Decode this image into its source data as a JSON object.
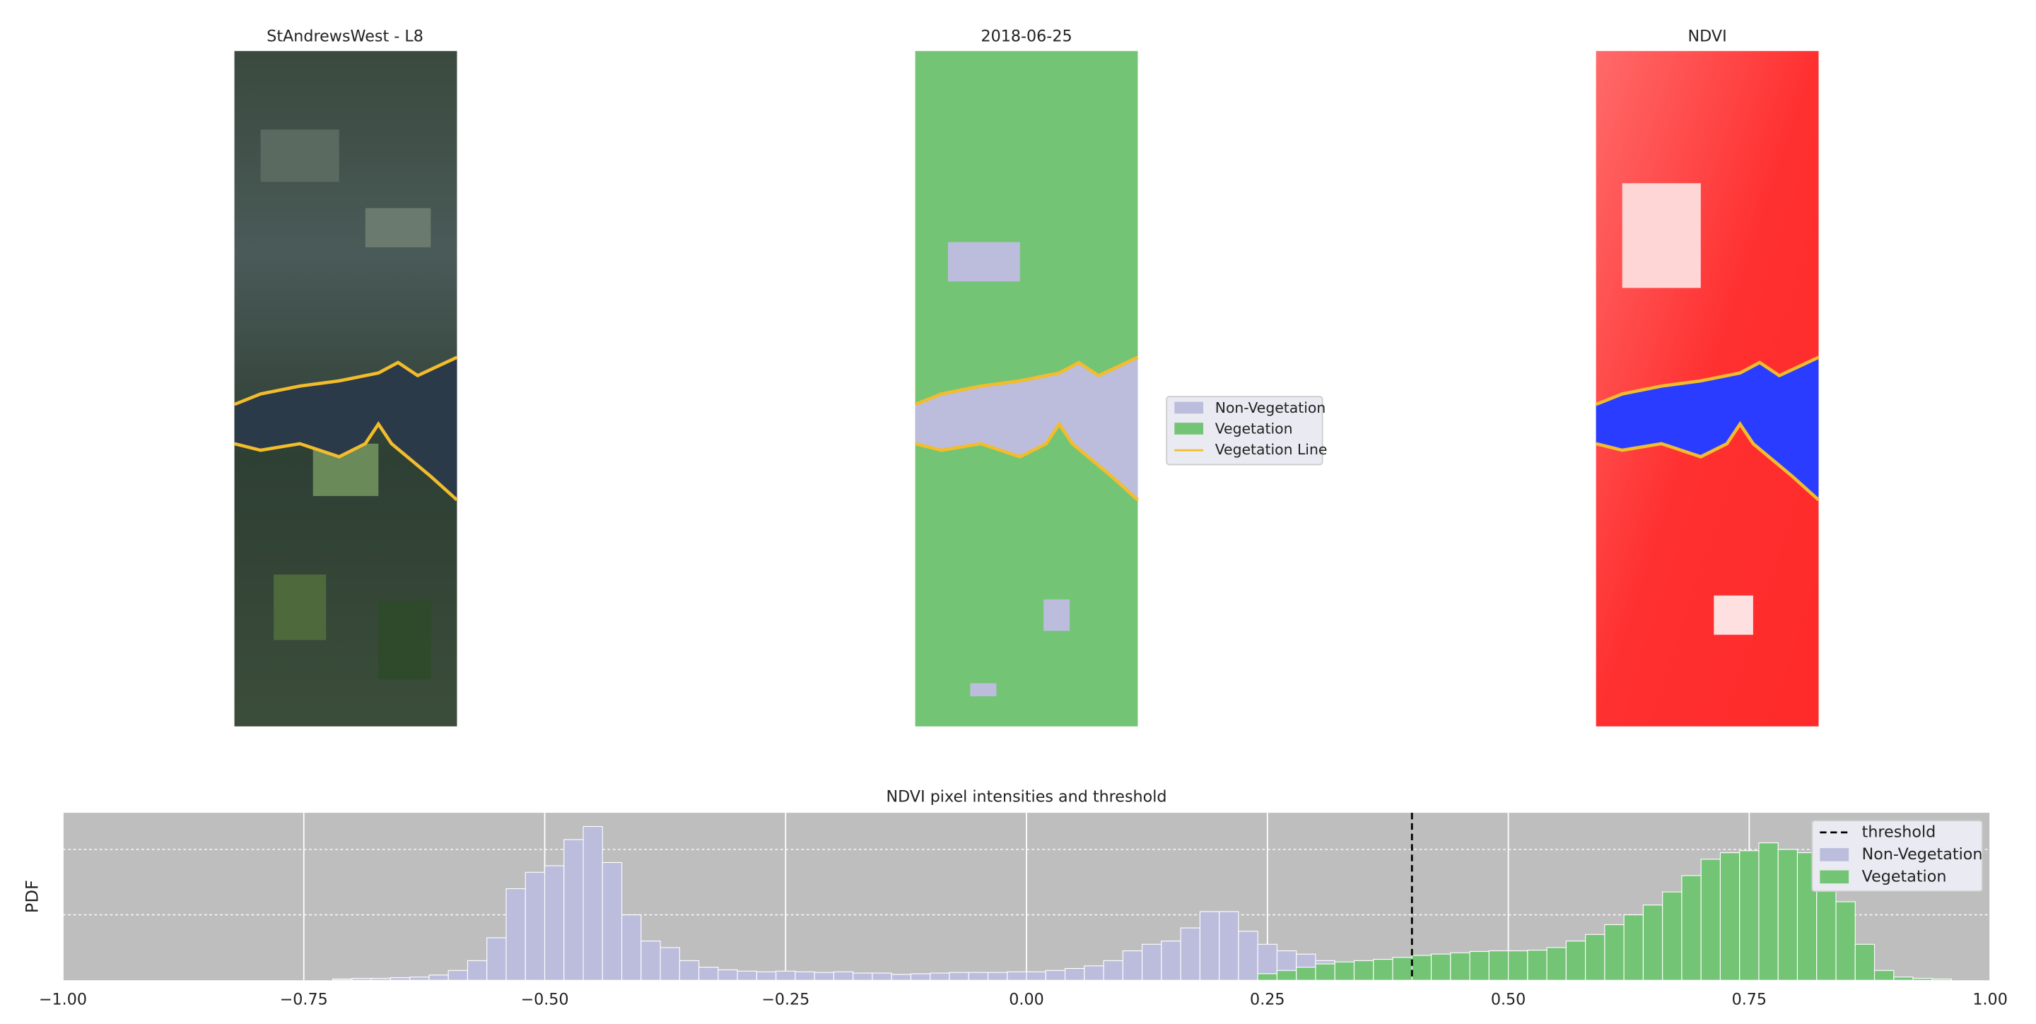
{
  "panels": [
    {
      "title": "StAndrewsWest - L8"
    },
    {
      "title": "2018-06-25"
    },
    {
      "title": "NDVI"
    }
  ],
  "map_legend": [
    "Non-Vegetation",
    "Vegetation",
    "Vegetation Line"
  ],
  "chart_data": {
    "type": "histogram",
    "title": "NDVI pixel intensities and threshold",
    "ylabel": "PDF",
    "xlim": [
      -1,
      1
    ],
    "ylim": [
      0,
      2.56
    ],
    "xticks": [
      {
        "value": -1,
        "label": "−1.00"
      },
      {
        "value": -0.75,
        "label": "−0.75"
      },
      {
        "value": -0.5,
        "label": "−0.50"
      },
      {
        "value": -0.25,
        "label": "−0.25"
      },
      {
        "value": 0,
        "label": "0.00"
      },
      {
        "value": 0.25,
        "label": "0.25"
      },
      {
        "value": 0.5,
        "label": "0.50"
      },
      {
        "value": 0.75,
        "label": "0.75"
      },
      {
        "value": 1,
        "label": "1.00"
      }
    ],
    "yticks": [
      1,
      2
    ],
    "grid": true,
    "legend": "upper right",
    "threshold": {
      "name": "threshold",
      "value": 0.4,
      "color": "#000000"
    },
    "series": [
      {
        "name": "Non-Vegetation",
        "color": "#bcbddc",
        "bins": [
          -0.72,
          -0.7,
          -0.68,
          -0.66,
          -0.64,
          -0.62,
          -0.6,
          -0.58,
          -0.56,
          -0.54,
          -0.52,
          -0.5,
          -0.48,
          -0.46,
          -0.44,
          -0.42,
          -0.4,
          -0.38,
          -0.36,
          -0.34,
          -0.32,
          -0.3,
          -0.28,
          -0.26,
          -0.24,
          -0.22,
          -0.2,
          -0.18,
          -0.16,
          -0.14,
          -0.12,
          -0.1,
          -0.08,
          -0.06,
          -0.04,
          -0.02,
          0.0,
          0.02,
          0.04,
          0.06,
          0.08,
          0.1,
          0.12,
          0.14,
          0.16,
          0.18,
          0.2,
          0.22,
          0.24,
          0.26,
          0.28,
          0.3,
          0.32,
          0.34,
          0.36,
          0.38,
          0.4,
          0.42
        ],
        "values": [
          0.02,
          0.03,
          0.03,
          0.04,
          0.05,
          0.08,
          0.15,
          0.3,
          0.65,
          1.4,
          1.65,
          1.75,
          2.15,
          2.35,
          1.8,
          1.0,
          0.6,
          0.5,
          0.3,
          0.2,
          0.16,
          0.14,
          0.13,
          0.14,
          0.13,
          0.12,
          0.13,
          0.11,
          0.11,
          0.09,
          0.1,
          0.11,
          0.12,
          0.12,
          0.12,
          0.13,
          0.13,
          0.15,
          0.18,
          0.22,
          0.3,
          0.45,
          0.55,
          0.6,
          0.8,
          1.05,
          1.05,
          0.75,
          0.55,
          0.45,
          0.4,
          0.3,
          0.2,
          0.12,
          0.08,
          0.05,
          0.03
        ]
      },
      {
        "name": "Vegetation",
        "color": "#74c476",
        "bins": [
          0.24,
          0.26,
          0.28,
          0.3,
          0.32,
          0.34,
          0.36,
          0.38,
          0.4,
          0.42,
          0.44,
          0.46,
          0.48,
          0.5,
          0.52,
          0.54,
          0.56,
          0.58,
          0.6,
          0.62,
          0.64,
          0.66,
          0.68,
          0.7,
          0.72,
          0.74,
          0.76,
          0.78,
          0.8,
          0.82,
          0.84,
          0.86,
          0.88,
          0.9,
          0.92,
          0.94,
          0.96
        ],
        "values": [
          0.1,
          0.15,
          0.2,
          0.25,
          0.28,
          0.3,
          0.32,
          0.35,
          0.38,
          0.4,
          0.42,
          0.44,
          0.45,
          0.45,
          0.46,
          0.5,
          0.6,
          0.7,
          0.85,
          1.0,
          1.15,
          1.35,
          1.6,
          1.85,
          1.95,
          1.98,
          2.1,
          2.0,
          1.95,
          1.75,
          1.2,
          0.55,
          0.15,
          0.05,
          0.03,
          0.02
        ]
      }
    ]
  }
}
